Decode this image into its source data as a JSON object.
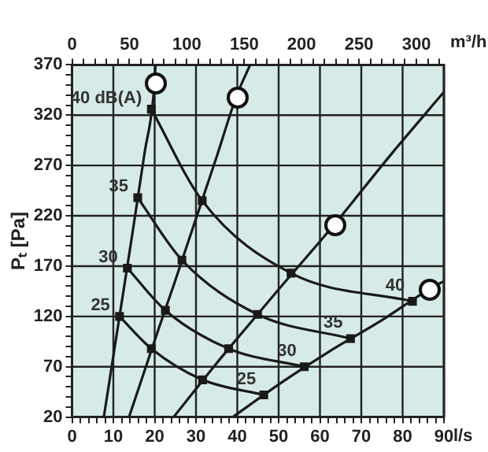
{
  "chart_data": {
    "type": "line",
    "xlabel": "l/s",
    "ylabel": "Pₜ [Pa]",
    "x2label": "m³/h",
    "xlim": [
      0,
      90
    ],
    "ylim": [
      20,
      370
    ],
    "x2lim": [
      0,
      324
    ],
    "xticks": [
      0,
      {
        "value": 2,
        "label": null
      },
      {
        "value": 4,
        "label": null
      },
      {
        "value": 6,
        "label": null
      },
      {
        "value": 8,
        "label": null
      },
      10,
      {
        "value": 12,
        "label": null
      },
      {
        "value": 14,
        "label": null
      },
      {
        "value": 16,
        "label": null
      },
      {
        "value": 18,
        "label": null
      },
      20,
      {
        "value": 22,
        "label": null
      },
      {
        "value": 24,
        "label": null
      },
      {
        "value": 26,
        "label": null
      },
      {
        "value": 28,
        "label": null
      },
      30,
      {
        "value": 32,
        "label": null
      },
      {
        "value": 34,
        "label": null
      },
      {
        "value": 36,
        "label": null
      },
      {
        "value": 38,
        "label": null
      },
      40,
      {
        "value": 42,
        "label": null
      },
      {
        "value": 44,
        "label": null
      },
      {
        "value": 46,
        "label": null
      },
      {
        "value": 48,
        "label": null
      },
      50,
      {
        "value": 52,
        "label": null
      },
      {
        "value": 54,
        "label": null
      },
      {
        "value": 56,
        "label": null
      },
      {
        "value": 58,
        "label": null
      },
      60,
      {
        "value": 62,
        "label": null
      },
      {
        "value": 64,
        "label": null
      },
      {
        "value": 66,
        "label": null
      },
      {
        "value": 68,
        "label": null
      },
      70,
      {
        "value": 72,
        "label": null
      },
      {
        "value": 74,
        "label": null
      },
      {
        "value": 76,
        "label": null
      },
      {
        "value": 78,
        "label": null
      },
      80,
      {
        "value": 82,
        "label": null
      },
      {
        "value": 84,
        "label": null
      },
      {
        "value": 86,
        "label": null
      },
      {
        "value": 88,
        "label": null
      },
      90
    ],
    "x2ticks": [
      0,
      {
        "value": 10,
        "label": null
      },
      {
        "value": 20,
        "label": null
      },
      {
        "value": 30,
        "label": null
      },
      {
        "value": 40,
        "label": null
      },
      50,
      {
        "value": 60,
        "label": null
      },
      {
        "value": 70,
        "label": null
      },
      {
        "value": 80,
        "label": null
      },
      {
        "value": 90,
        "label": null
      },
      100,
      {
        "value": 110,
        "label": null
      },
      {
        "value": 120,
        "label": null
      },
      {
        "value": 130,
        "label": null
      },
      {
        "value": 140,
        "label": null
      },
      150,
      {
        "value": 160,
        "label": null
      },
      {
        "value": 170,
        "label": null
      },
      {
        "value": 180,
        "label": null
      },
      {
        "value": 190,
        "label": null
      },
      200,
      {
        "value": 210,
        "label": null
      },
      {
        "value": 220,
        "label": null
      },
      {
        "value": 230,
        "label": null
      },
      {
        "value": 240,
        "label": null
      },
      250,
      {
        "value": 260,
        "label": null
      },
      {
        "value": 270,
        "label": null
      },
      {
        "value": 280,
        "label": null
      },
      {
        "value": 290,
        "label": null
      },
      300,
      {
        "value": 310,
        "label": null
      },
      {
        "value": 320,
        "label": null
      }
    ],
    "yticks": [
      20,
      {
        "value": 30,
        "label": null
      },
      {
        "value": 40,
        "label": null
      },
      {
        "value": 50,
        "label": null
      },
      {
        "value": 60,
        "label": null
      },
      70,
      {
        "value": 80,
        "label": null
      },
      {
        "value": 90,
        "label": null
      },
      {
        "value": 100,
        "label": null
      },
      {
        "value": 110,
        "label": null
      },
      120,
      {
        "value": 130,
        "label": null
      },
      {
        "value": 140,
        "label": null
      },
      {
        "value": 150,
        "label": null
      },
      {
        "value": 160,
        "label": null
      },
      170,
      {
        "value": 180,
        "label": null
      },
      {
        "value": 190,
        "label": null
      },
      {
        "value": 200,
        "label": null
      },
      {
        "value": 210,
        "label": null
      },
      220,
      {
        "value": 230,
        "label": null
      },
      {
        "value": 240,
        "label": null
      },
      {
        "value": 250,
        "label": null
      },
      {
        "value": 260,
        "label": null
      },
      270,
      {
        "value": 280,
        "label": null
      },
      {
        "value": 290,
        "label": null
      },
      {
        "value": 300,
        "label": null
      },
      {
        "value": 310,
        "label": null
      },
      320,
      {
        "value": 330,
        "label": null
      },
      {
        "value": 340,
        "label": null
      },
      {
        "value": 350,
        "label": null
      },
      {
        "value": 360,
        "label": null
      },
      370
    ],
    "grid": true,
    "legend": false,
    "line_style": "solid",
    "marker": "square",
    "series": [
      {
        "color": "#1a1a1a",
        "marker": "none",
        "x": [
          7.7,
          12.4,
          14.6,
          17.5,
          20,
          20.2
        ],
        "values": [
          20,
          144,
          202,
          281,
          353,
          370
        ]
      },
      {
        "color": "#1a1a1a",
        "marker": "none",
        "x": [
          13.8,
          20.9,
          24.6,
          29,
          35.1,
          39.8,
          43.1
        ],
        "values": [
          20,
          107,
          151,
          205,
          280,
          339,
          370
        ]
      },
      {
        "color": "#1a1a1a",
        "marker": "none",
        "x": [
          24.6,
          34.7,
          41.4,
          49,
          63.6,
          77.2,
          90
        ],
        "values": [
          20,
          72,
          105,
          142,
          212,
          281,
          343
        ]
      },
      {
        "color": "#1a1a1a",
        "marker": "none",
        "x": [
          38.9,
          51.3,
          61.8,
          74.9,
          86.8,
          90
        ],
        "values": [
          20,
          56,
          84,
          116,
          148,
          155
        ]
      },
      {
        "color": "#1a1a1a",
        "x": [
          19.2,
          31.5,
          53,
          82.4
        ],
        "values": [
          326,
          235,
          163,
          135
        ]
      },
      {
        "color": "#1a1a1a",
        "x": [
          15.9,
          26.6,
          44.9,
          67.4
        ],
        "values": [
          238,
          176,
          122,
          98
        ]
      },
      {
        "color": "#1a1a1a",
        "x": [
          13.4,
          22.6,
          37.9,
          56.2
        ],
        "values": [
          168,
          126,
          88,
          70
        ]
      },
      {
        "color": "#1a1a1a",
        "x": [
          11.5,
          19.2,
          31.6,
          46.4
        ],
        "values": [
          120,
          88,
          57,
          42
        ]
      }
    ],
    "annotations": [
      {
        "text": "40 dB(A)",
        "x": 19.2,
        "y": 326
      },
      {
        "text": "35",
        "x": 15.9,
        "y": 238
      },
      {
        "text": "30",
        "x": 13.4,
        "y": 168
      },
      {
        "text": "25",
        "x": 11.5,
        "y": 120
      },
      {
        "text": "40",
        "x": 82.4,
        "y": 135
      },
      {
        "text": "35",
        "x": 67.4,
        "y": 98
      },
      {
        "text": "30",
        "x": 56.2,
        "y": 70
      },
      {
        "text": "25",
        "x": 46.4,
        "y": 42
      }
    ]
  }
}
